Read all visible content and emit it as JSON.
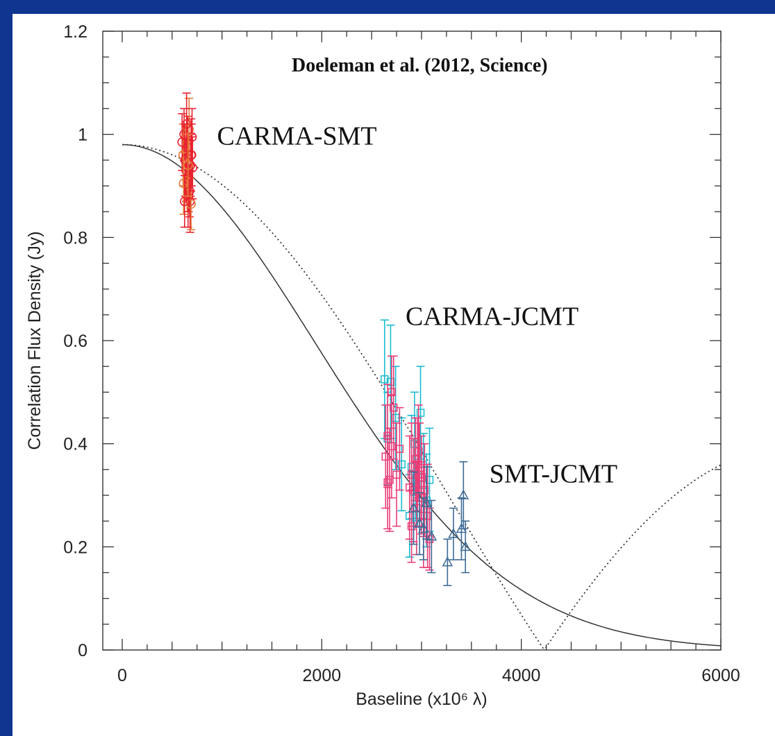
{
  "colors": {
    "frame": "#0f3591",
    "carma_smt": "#e8222f",
    "carma_smt_alt": "#e6783a",
    "carma_jcmt_cyan": "#19bcd0",
    "carma_jcmt_pink": "#ea3d77",
    "smt_jcmt": "#3d6a95",
    "model_line": "#333333"
  },
  "chart_data": {
    "type": "scatter",
    "xlabel": "Baseline (x10⁶ λ)",
    "ylabel": "Correlation Flux Density (Jy)",
    "xlim": [
      -100,
      6000
    ],
    "ylim": [
      0,
      1.2
    ],
    "x_ticks": [
      0,
      2000,
      4000,
      6000
    ],
    "y_ticks": [
      0,
      0.2,
      0.4,
      0.6,
      0.8,
      1,
      1.2
    ],
    "y_tick_labels": [
      "0",
      "0.2",
      "0.4",
      "0.6",
      "0.8",
      "1",
      "1.2"
    ],
    "credit": "Doeleman et al. (2012, Science)",
    "group_labels": [
      {
        "text": "CARMA-SMT",
        "x": 950,
        "y": 0.98
      },
      {
        "text": "CARMA-JCMT",
        "x": 2840,
        "y": 0.63
      },
      {
        "text": "SMT-JCMT",
        "x": 3680,
        "y": 0.325
      }
    ],
    "models": [
      {
        "style": "solid",
        "amplitude": 0.98,
        "kind": "gaussian",
        "sigma": 1938
      },
      {
        "style": "dotted",
        "amplitude": 0.98,
        "kind": "ring",
        "zero": 4230
      }
    ],
    "series": [
      {
        "marker": "circle",
        "color_key": "carma_smt",
        "points": [
          [
            600,
            0.985,
            0.055
          ],
          [
            610,
            0.96,
            0.06
          ],
          [
            620,
            1.0,
            0.05
          ],
          [
            630,
            0.95,
            0.07
          ],
          [
            640,
            0.93,
            0.06
          ],
          [
            650,
            0.91,
            0.06
          ],
          [
            655,
            0.975,
            0.06
          ],
          [
            660,
            0.88,
            0.06
          ],
          [
            665,
            0.92,
            0.07
          ],
          [
            670,
            1.01,
            0.06
          ],
          [
            675,
            0.89,
            0.05
          ],
          [
            680,
            0.87,
            0.06
          ],
          [
            685,
            0.94,
            0.06
          ],
          [
            690,
            0.865,
            0.05
          ],
          [
            695,
            0.96,
            0.06
          ],
          [
            700,
            0.995,
            0.055
          ],
          [
            705,
            0.935,
            0.06
          ],
          [
            615,
            0.905,
            0.06
          ],
          [
            625,
            0.87,
            0.05
          ],
          [
            645,
            1.02,
            0.06
          ],
          [
            690,
            0.96,
            0.07
          ],
          [
            660,
            0.94,
            0.06
          ]
        ]
      },
      {
        "marker": "square",
        "color_key": "carma_jcmt_cyan",
        "points": [
          [
            2630,
            0.525,
            0.115
          ],
          [
            2690,
            0.52,
            0.11
          ],
          [
            2660,
            0.41,
            0.09
          ],
          [
            2740,
            0.45,
            0.1
          ],
          [
            2800,
            0.36,
            0.09
          ],
          [
            2900,
            0.355,
            0.1
          ],
          [
            2930,
            0.4,
            0.1
          ],
          [
            2960,
            0.34,
            0.1
          ],
          [
            2990,
            0.46,
            0.09
          ],
          [
            3020,
            0.32,
            0.1
          ],
          [
            3050,
            0.29,
            0.09
          ],
          [
            3080,
            0.33,
            0.1
          ],
          [
            2880,
            0.26,
            0.08
          ],
          [
            2940,
            0.33,
            0.08
          ]
        ]
      },
      {
        "marker": "square",
        "color_key": "carma_jcmt_pink",
        "points": [
          [
            2640,
            0.375,
            0.1
          ],
          [
            2660,
            0.415,
            0.1
          ],
          [
            2680,
            0.33,
            0.1
          ],
          [
            2700,
            0.395,
            0.1
          ],
          [
            2720,
            0.47,
            0.1
          ],
          [
            2750,
            0.34,
            0.1
          ],
          [
            2780,
            0.39,
            0.08
          ],
          [
            2660,
            0.325,
            0.09
          ],
          [
            2700,
            0.5,
            0.07
          ],
          [
            2880,
            0.315,
            0.1
          ],
          [
            2900,
            0.34,
            0.1
          ],
          [
            2920,
            0.31,
            0.1
          ],
          [
            2940,
            0.37,
            0.08
          ],
          [
            2960,
            0.36,
            0.09
          ],
          [
            2980,
            0.34,
            0.1
          ],
          [
            3000,
            0.335,
            0.08
          ],
          [
            2950,
            0.275,
            0.09
          ],
          [
            3020,
            0.26,
            0.1
          ],
          [
            3060,
            0.26,
            0.1
          ],
          [
            3080,
            0.215,
            0.06
          ],
          [
            2900,
            0.24,
            0.07
          ],
          [
            2970,
            0.385,
            0.09
          ],
          [
            3000,
            0.295,
            0.07
          ],
          [
            3030,
            0.31,
            0.09
          ]
        ]
      },
      {
        "marker": "triangle",
        "color_key": "smt_jcmt",
        "points": [
          [
            2920,
            0.275,
            0.07
          ],
          [
            2980,
            0.245,
            0.06
          ],
          [
            3020,
            0.235,
            0.06
          ],
          [
            3100,
            0.22,
            0.07
          ],
          [
            3260,
            0.17,
            0.045
          ],
          [
            3320,
            0.225,
            0.05
          ],
          [
            3400,
            0.235,
            0.06
          ],
          [
            3420,
            0.3,
            0.065
          ],
          [
            3440,
            0.2,
            0.05
          ],
          [
            3050,
            0.285,
            0.07
          ]
        ]
      }
    ]
  }
}
